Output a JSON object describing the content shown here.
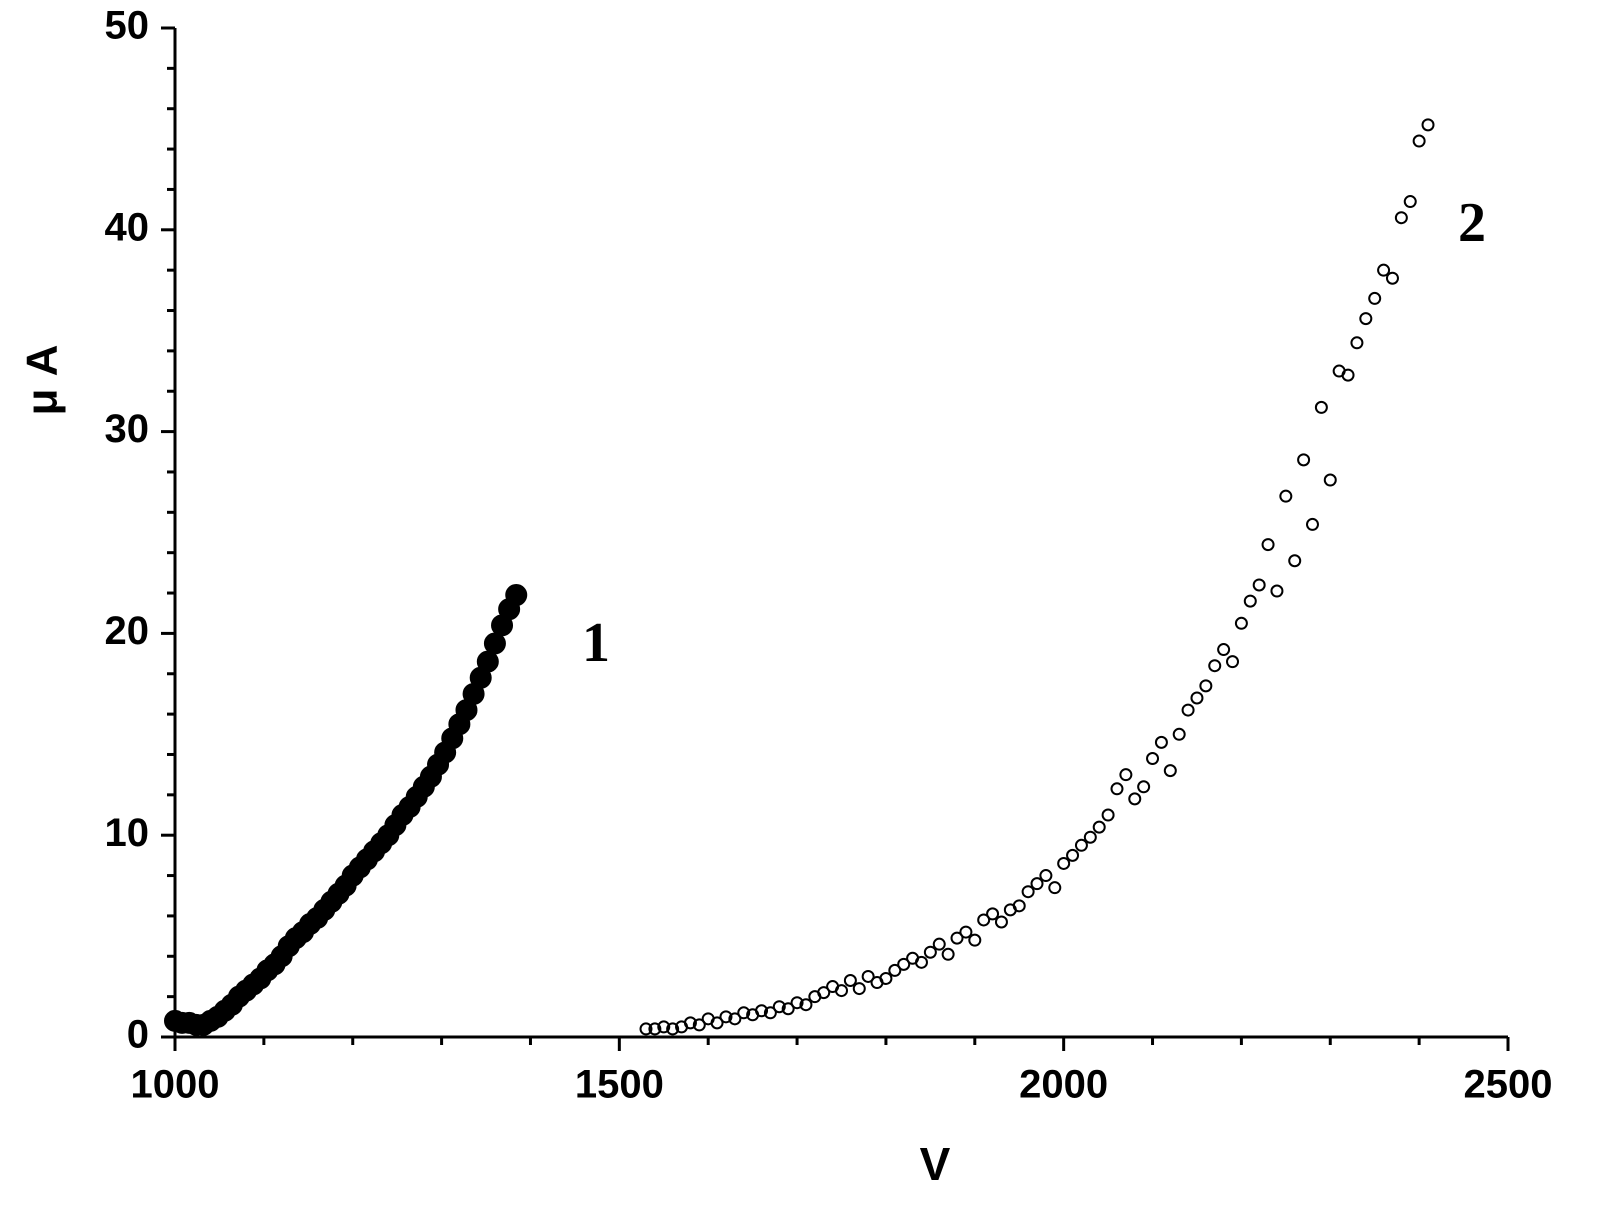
{
  "chart_data": {
    "type": "scatter",
    "x_label": "V",
    "y_label": "μ A",
    "annotations": [
      "1",
      "2"
    ],
    "xlim": [
      1000,
      2500
    ],
    "xticks": [
      1000,
      1500,
      2000,
      2500
    ],
    "xminorticks": [
      1100,
      1200,
      1300,
      1400,
      1600,
      1700,
      1800,
      1900,
      2100,
      2200,
      2300,
      2400
    ],
    "ylim": [
      0,
      50
    ],
    "yticks": [
      0,
      10,
      20,
      30,
      40,
      50
    ],
    "yminorticks": [
      2,
      4,
      6,
      8,
      12,
      14,
      16,
      18,
      22,
      24,
      26,
      28,
      32,
      34,
      36,
      38,
      42,
      44,
      46,
      48
    ],
    "series": [
      {
        "color": "#000000",
        "filled": true,
        "x": [
          1000,
          1008,
          1016,
          1024,
          1032,
          1040,
          1048,
          1056,
          1064,
          1072,
          1080,
          1088,
          1096,
          1104,
          1112,
          1120,
          1128,
          1136,
          1144,
          1152,
          1160,
          1168,
          1176,
          1184,
          1192,
          1200,
          1208,
          1216,
          1224,
          1232,
          1240,
          1248,
          1256,
          1264,
          1272,
          1280,
          1288,
          1296,
          1304,
          1312,
          1320,
          1328,
          1336,
          1344,
          1352,
          1360,
          1368,
          1376,
          1384
        ],
        "values": [
          0.8,
          0.7,
          0.7,
          0.6,
          0.6,
          0.8,
          1.0,
          1.3,
          1.6,
          2.0,
          2.3,
          2.6,
          2.9,
          3.3,
          3.6,
          4.0,
          4.5,
          4.9,
          5.2,
          5.6,
          5.9,
          6.3,
          6.7,
          7.1,
          7.5,
          8.0,
          8.4,
          8.8,
          9.2,
          9.6,
          10.0,
          10.5,
          11.0,
          11.4,
          11.9,
          12.4,
          12.9,
          13.5,
          14.1,
          14.8,
          15.5,
          16.2,
          17.0,
          17.8,
          18.6,
          19.5,
          20.4,
          21.2,
          21.9
        ]
      },
      {
        "color": "#000000",
        "filled": false,
        "x": [
          1530,
          1540,
          1550,
          1560,
          1570,
          1580,
          1590,
          1600,
          1610,
          1620,
          1630,
          1640,
          1650,
          1660,
          1670,
          1680,
          1690,
          1700,
          1710,
          1720,
          1730,
          1740,
          1750,
          1760,
          1770,
          1780,
          1790,
          1800,
          1810,
          1820,
          1830,
          1840,
          1850,
          1860,
          1870,
          1880,
          1890,
          1900,
          1910,
          1920,
          1930,
          1940,
          1950,
          1960,
          1970,
          1980,
          1990,
          2000,
          2010,
          2020,
          2030,
          2040,
          2050,
          2060,
          2070,
          2080,
          2090,
          2100,
          2110,
          2120,
          2130,
          2140,
          2150,
          2160,
          2170,
          2180,
          2190,
          2200,
          2210,
          2220,
          2230,
          2240,
          2250,
          2260,
          2270,
          2280,
          2290,
          2300,
          2310,
          2320,
          2330,
          2340,
          2350,
          2360,
          2370,
          2380,
          2390,
          2400,
          2410
        ],
        "values": [
          0.4,
          0.4,
          0.5,
          0.4,
          0.5,
          0.7,
          0.6,
          0.9,
          0.7,
          1.0,
          0.9,
          1.2,
          1.1,
          1.3,
          1.2,
          1.5,
          1.4,
          1.7,
          1.6,
          2.0,
          2.2,
          2.5,
          2.3,
          2.8,
          2.4,
          3.0,
          2.7,
          2.9,
          3.3,
          3.6,
          3.9,
          3.7,
          4.2,
          4.6,
          4.1,
          4.9,
          5.2,
          4.8,
          5.8,
          6.1,
          5.7,
          6.3,
          6.5,
          7.2,
          7.6,
          8.0,
          7.4,
          8.6,
          9.0,
          9.5,
          9.9,
          10.4,
          11.0,
          12.3,
          13.0,
          11.8,
          12.4,
          13.8,
          14.6,
          13.2,
          15.0,
          16.2,
          16.8,
          17.4,
          18.4,
          19.2,
          18.6,
          20.5,
          21.6,
          22.4,
          24.4,
          22.1,
          26.8,
          23.6,
          28.6,
          25.4,
          31.2,
          27.6,
          33.0,
          32.8,
          34.4,
          35.6,
          36.6,
          38.0,
          37.6,
          40.6,
          41.4,
          44.4,
          45.2
        ]
      }
    ]
  }
}
